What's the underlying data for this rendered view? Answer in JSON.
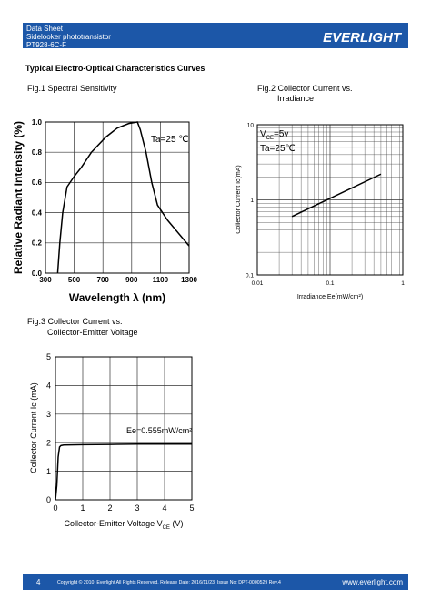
{
  "header": {
    "lines": [
      "Data Sheet",
      "Sidelooker phototransistor",
      "PT928-6C-F"
    ],
    "logo": "EVERLIGHT"
  },
  "heading": "Typical Electro-Optical Characteristics Curves",
  "chart_data": [
    {
      "type": "line",
      "title_lines": [
        "Fig.1 Spectral Sensitivity"
      ],
      "y_label": "Relative Radiant Intensity (%)",
      "x_label": "Wavelength λ (nm)",
      "annotation": "Ta=25 ℃",
      "x": [
        385,
        400,
        420,
        450,
        500,
        550,
        620,
        720,
        800,
        880,
        940,
        960,
        1000,
        1040,
        1080,
        1150,
        1300
      ],
      "series": [
        {
          "color": "#000000",
          "values": [
            0,
            0.2,
            0.4,
            0.57,
            0.64,
            0.7,
            0.8,
            0.9,
            0.96,
            0.99,
            1.0,
            0.95,
            0.8,
            0.6,
            0.45,
            0.35,
            0.18
          ]
        }
      ],
      "xlim": [
        300,
        1300
      ],
      "xticks": [
        300,
        500,
        700,
        900,
        1100,
        1300
      ],
      "ylim": [
        0,
        1
      ],
      "yticks": [
        {
          "value": 0,
          "label": "0.0"
        },
        0.2,
        0.4,
        0.6,
        0.8,
        {
          "value": 1,
          "label": "1.0"
        }
      ],
      "grid": true,
      "log": false
    },
    {
      "type": "line",
      "title_lines": [
        "Fig.2 Collector Current vs.",
        "Irradiance"
      ],
      "y_label": "Collector Current Ic(mA)",
      "x_label": "Irradiance Ee(mW/cm²)",
      "annotation_parts": {
        "main": "V",
        "sub": "CE",
        "rest": "=5v"
      },
      "annotation": "Ta=25℃",
      "x": [
        0.03,
        0.5
      ],
      "series": [
        {
          "color": "#000000",
          "values": [
            0.6,
            2.2
          ]
        }
      ],
      "xlim": [
        0.01,
        1
      ],
      "xticks": [
        0.01,
        0.1,
        1
      ],
      "ylim": [
        0.1,
        10
      ],
      "yticks": [
        0.1,
        1,
        10
      ],
      "grid": true,
      "log": true
    },
    {
      "type": "line",
      "title_lines": [
        "Fig.3 Collector Current    vs.",
        "Collector-Emitter Voltage"
      ],
      "y_label": "Collector Current Ic (mA)",
      "x_label_parts": {
        "main": "Collector-Emitter Voltage V",
        "sub": "CE",
        "rest": " (V)"
      },
      "annotation": "Ee=0.555mW/cm²",
      "x": [
        0,
        0.05,
        0.1,
        0.15,
        0.2,
        0.3,
        1,
        2,
        3,
        4,
        5
      ],
      "series": [
        {
          "color": "#000000",
          "values": [
            0,
            0.5,
            1.5,
            1.85,
            1.9,
            1.92,
            1.93,
            1.94,
            1.95,
            1.95,
            1.95
          ]
        }
      ],
      "xlim": [
        0,
        5
      ],
      "xticks": [
        0,
        1,
        2,
        3,
        4,
        5
      ],
      "ylim": [
        0,
        5
      ],
      "yticks": [
        0,
        1,
        2,
        3,
        4,
        5
      ],
      "grid": true,
      "log": false
    }
  ],
  "footer": {
    "page": "4",
    "copyright": "Copyright © 2010, Everlight All Rights Reserved. Release Date: 2016/11/23. Issue No: DPT-0000529 Rev.4",
    "url": "www.everlight.com"
  }
}
